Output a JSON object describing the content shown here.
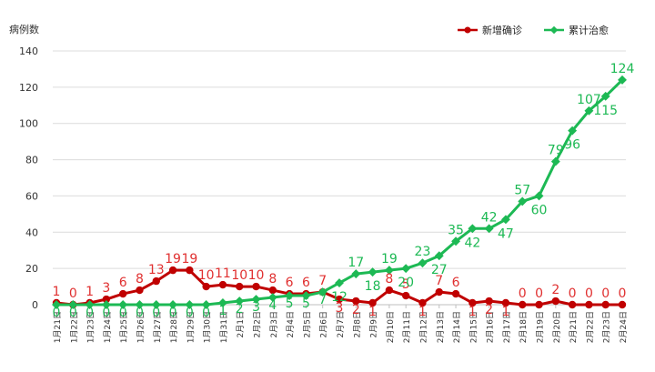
{
  "chart_data": {
    "type": "line",
    "ylabel": "病例数",
    "ylim": [
      0,
      140
    ],
    "yticks": [
      0,
      20,
      40,
      60,
      80,
      100,
      120,
      140
    ],
    "grid": true,
    "legend_position": "top-right",
    "categories": [
      "1月21日",
      "1月22日",
      "1月23日",
      "1月24日",
      "1月25日",
      "1月26日",
      "1月27日",
      "1月28日",
      "1月29日",
      "1月30日",
      "1月31日",
      "2月1日",
      "2月2日",
      "2月3日",
      "2月4日",
      "2月5日",
      "2月6日",
      "2月7日",
      "2月8日",
      "2月9日",
      "2月10日",
      "2月11日",
      "2月12日",
      "2月13日",
      "2月14日",
      "2月15日",
      "2月16日",
      "2月17日",
      "2月18日",
      "2月19日",
      "2月20日",
      "2月21日",
      "2月22日",
      "2月23日",
      "2月24日"
    ],
    "series": [
      {
        "name": "新增确诊",
        "color": "#c00000",
        "label_color": "#e03030",
        "values": [
          1,
          0,
          1,
          3,
          6,
          8,
          13,
          19,
          19,
          10,
          11,
          10,
          10,
          8,
          6,
          6,
          7,
          3,
          2,
          1,
          8,
          5,
          1,
          7,
          6,
          1,
          2,
          1,
          0,
          0,
          2,
          0,
          0,
          0,
          0
        ]
      },
      {
        "name": "累计治愈",
        "color": "#1db954",
        "label_color": "#1db954",
        "values": [
          0,
          0,
          0,
          0,
          0,
          0,
          0,
          0,
          0,
          0,
          1,
          2,
          3,
          4,
          5,
          5,
          7,
          12,
          17,
          18,
          19,
          20,
          23,
          27,
          35,
          42,
          42,
          47,
          57,
          60,
          79,
          96,
          107,
          115,
          124
        ]
      }
    ]
  }
}
